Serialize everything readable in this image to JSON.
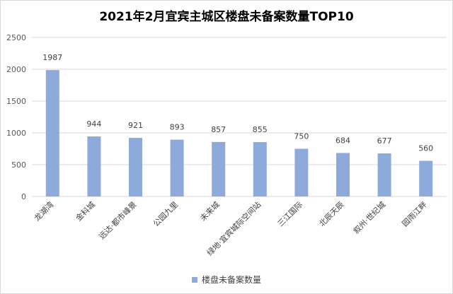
{
  "chart_data": {
    "type": "bar",
    "title": "2021年2月宜宾主城区楼盘未备案数量TOP10",
    "categories": [
      "龙湖湾",
      "金科城",
      "远达·都市峰景",
      "公园九里",
      "未来城",
      "绿地·宜宾城际空间站",
      "三江国际",
      "北辰天辰",
      "叙州·世纪城",
      "园雨江畔"
    ],
    "series": [
      {
        "name": "楼盘未备案数量",
        "values": [
          1987,
          944,
          921,
          893,
          857,
          855,
          750,
          684,
          677,
          560
        ],
        "color": "#8eaadb"
      }
    ],
    "ylim": [
      0,
      2500
    ],
    "yticks": [
      0,
      500,
      1000,
      1500,
      2000,
      2500
    ],
    "grid": true,
    "data_labels": true,
    "legend_position": "bottom"
  }
}
